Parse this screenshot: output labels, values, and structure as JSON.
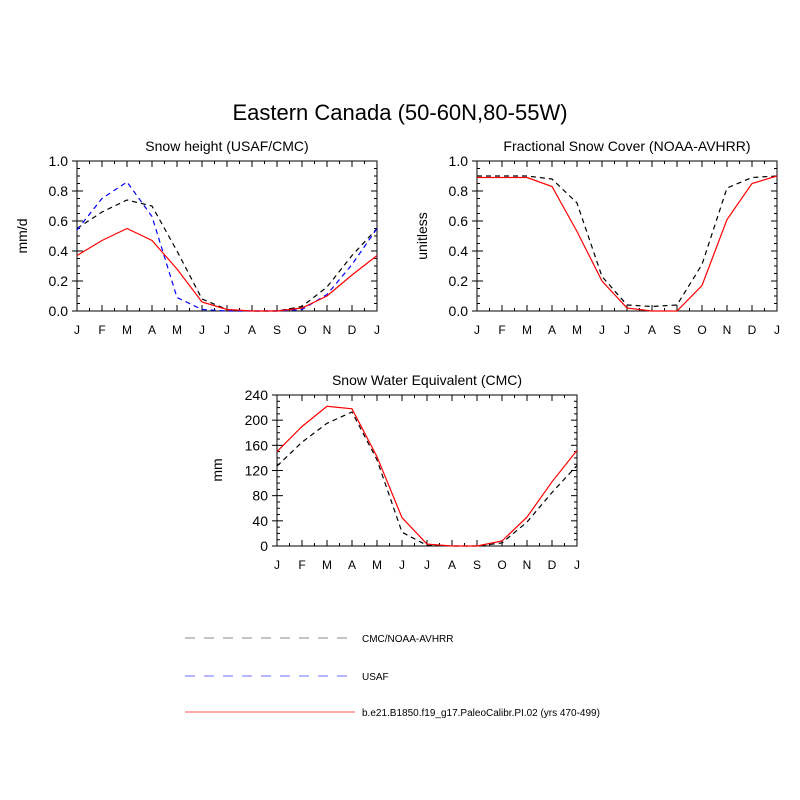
{
  "figure_title": "Eastern Canada (50-60N,80-55W)",
  "colors": {
    "cmc": "#000000",
    "usaf": "#0000ff",
    "model": "#ff0000",
    "legend_cmc": "#a0a0a0",
    "legend_usaf": "#8c8cff",
    "legend_model": "#ff8c8c"
  },
  "legend": {
    "entries": [
      {
        "label": "CMC/NOAA-AVHRR",
        "style": "dashed",
        "color": "#a0a0a0"
      },
      {
        "label": "USAF",
        "style": "dashed",
        "color": "#8c8cff"
      },
      {
        "label": "b.e21.B1850.f19_g17.PaleoCalibr.PI.02 (yrs 470-499)",
        "style": "solid",
        "color": "#ff8c8c"
      }
    ]
  },
  "chart_data": [
    {
      "type": "line",
      "title": "Snow height (USAF/CMC)",
      "xlabel": "",
      "ylabel": "mm/d",
      "categories": [
        "J",
        "F",
        "M",
        "A",
        "M",
        "J",
        "J",
        "A",
        "S",
        "O",
        "N",
        "D",
        "J"
      ],
      "ylim": [
        0,
        1.0
      ],
      "yticks": [
        0.0,
        0.2,
        0.4,
        0.6,
        0.8,
        1.0
      ],
      "ytick_labels": [
        "0.0",
        "0.2",
        "0.4",
        "0.6",
        "0.8",
        "1.0"
      ],
      "series": [
        {
          "key": "cmc",
          "style": "dashed",
          "color": "#000000",
          "values": [
            0.55,
            0.66,
            0.74,
            0.7,
            0.4,
            0.08,
            0.01,
            0.0,
            0.0,
            0.03,
            0.16,
            0.37,
            0.55
          ]
        },
        {
          "key": "usaf",
          "style": "dashed",
          "color": "#0000ff",
          "values": [
            0.54,
            0.75,
            0.86,
            0.63,
            0.09,
            0.01,
            0.0,
            0.0,
            0.0,
            0.01,
            0.11,
            0.31,
            0.55
          ]
        },
        {
          "key": "model",
          "style": "solid",
          "color": "#ff0000",
          "values": [
            0.37,
            0.47,
            0.55,
            0.47,
            0.28,
            0.06,
            0.01,
            0.0,
            0.0,
            0.02,
            0.1,
            0.24,
            0.37
          ]
        }
      ]
    },
    {
      "type": "line",
      "title": "Fractional Snow Cover (NOAA-AVHRR)",
      "xlabel": "",
      "ylabel": "unitless",
      "categories": [
        "J",
        "F",
        "M",
        "A",
        "M",
        "J",
        "J",
        "A",
        "S",
        "O",
        "N",
        "D",
        "J"
      ],
      "ylim": [
        0,
        1.0
      ],
      "yticks": [
        0.0,
        0.2,
        0.4,
        0.6,
        0.8,
        1.0
      ],
      "ytick_labels": [
        "0.0",
        "0.2",
        "0.4",
        "0.6",
        "0.8",
        "1.0"
      ],
      "series": [
        {
          "key": "cmc",
          "style": "dashed",
          "color": "#000000",
          "values": [
            0.9,
            0.9,
            0.9,
            0.88,
            0.72,
            0.23,
            0.04,
            0.03,
            0.04,
            0.31,
            0.82,
            0.89,
            0.9
          ]
        },
        {
          "key": "model",
          "style": "solid",
          "color": "#ff0000",
          "values": [
            0.89,
            0.89,
            0.89,
            0.83,
            0.53,
            0.2,
            0.02,
            0.0,
            0.0,
            0.17,
            0.61,
            0.85,
            0.9
          ]
        }
      ]
    },
    {
      "type": "line",
      "title": "Snow Water Equivalent (CMC)",
      "xlabel": "",
      "ylabel": "mm",
      "categories": [
        "J",
        "F",
        "M",
        "A",
        "M",
        "J",
        "J",
        "A",
        "S",
        "O",
        "N",
        "D",
        "J"
      ],
      "ylim": [
        0,
        240
      ],
      "yticks": [
        0,
        40,
        80,
        120,
        160,
        200,
        240
      ],
      "ytick_labels": [
        "0",
        "40",
        "80",
        "120",
        "160",
        "200",
        "240"
      ],
      "series": [
        {
          "key": "cmc",
          "style": "dashed",
          "color": "#000000",
          "values": [
            127,
            165,
            195,
            213,
            137,
            22,
            1,
            0,
            0,
            5,
            38,
            85,
            128
          ]
        },
        {
          "key": "model",
          "style": "solid",
          "color": "#ff0000",
          "values": [
            150,
            190,
            222,
            218,
            142,
            45,
            3,
            0,
            0,
            8,
            46,
            102,
            152
          ]
        }
      ]
    }
  ]
}
